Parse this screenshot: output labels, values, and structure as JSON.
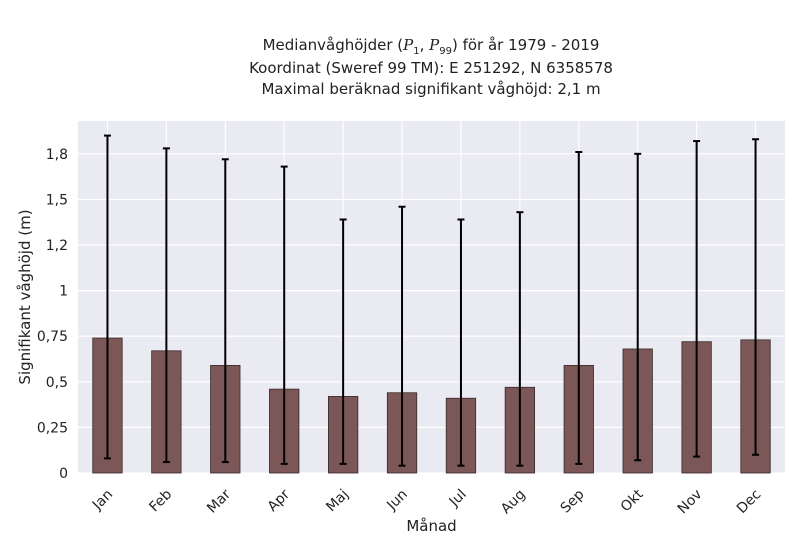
{
  "chart_data": {
    "type": "bar",
    "title_prefix": "Medianvåghöjder (",
    "title_p1": "P",
    "title_p1_sub": "1",
    "title_sep": ", ",
    "title_p99": "P",
    "title_p99_sub": "99",
    "title_suffix": ") för år 1979 - 2019",
    "subtitle": "Koordinat (Sweref 99 TM): E 251292, N 6358578",
    "subtitle2": "Maximal beräknad signifikant våghöjd: 2,1 m",
    "xlabel": "Månad",
    "ylabel": "Signifikant våghöjd (m)",
    "categories": [
      "Jan",
      "Feb",
      "Mar",
      "Apr",
      "Maj",
      "Jun",
      "Jul",
      "Aug",
      "Sep",
      "Okt",
      "Nov",
      "Dec"
    ],
    "values": [
      0.74,
      0.67,
      0.59,
      0.46,
      0.42,
      0.44,
      0.41,
      0.47,
      0.59,
      0.68,
      0.72,
      0.73
    ],
    "p1": [
      0.08,
      0.06,
      0.06,
      0.05,
      0.05,
      0.04,
      0.04,
      0.04,
      0.05,
      0.07,
      0.09,
      0.1
    ],
    "p99": [
      1.85,
      1.78,
      1.72,
      1.68,
      1.39,
      1.46,
      1.39,
      1.43,
      1.76,
      1.75,
      1.82,
      1.83
    ],
    "yticks": [
      0,
      0.25,
      0.5,
      0.75,
      1.0,
      1.25,
      1.5,
      1.75
    ],
    "ytick_labels": [
      "0",
      "0,25",
      "0,5",
      "0,75",
      "1",
      "1,2",
      "1,5",
      "1,8"
    ],
    "ylim": [
      0,
      1.93
    ],
    "grid": true,
    "colors": {
      "bar": "#7b5757",
      "bar_edge": "#3a2a2a",
      "error": "#000000",
      "plot_bg": "#eaeaf2",
      "grid": "#ffffff"
    }
  }
}
